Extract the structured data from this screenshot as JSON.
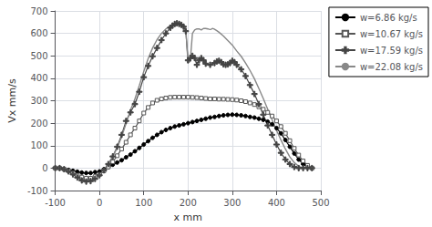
{
  "chart_data": {
    "type": "line",
    "xlabel": "x mm",
    "ylabel": "Vx mm/s",
    "xlim": [
      -100,
      500
    ],
    "ylim": [
      -100,
      700
    ],
    "xticks": [
      -100,
      0,
      100,
      200,
      300,
      400,
      500
    ],
    "yticks": [
      -100,
      0,
      100,
      200,
      300,
      400,
      500,
      600,
      700
    ],
    "grid": true,
    "legend": "right",
    "series": [
      {
        "name": "w=6.86 kg/s",
        "color": "#000000",
        "marker": "circle",
        "x": [
          -100,
          -90,
          -80,
          -70,
          -60,
          -50,
          -40,
          -30,
          -20,
          -10,
          0,
          10,
          20,
          30,
          40,
          50,
          60,
          70,
          80,
          90,
          100,
          110,
          120,
          130,
          140,
          150,
          160,
          170,
          180,
          190,
          200,
          210,
          220,
          230,
          240,
          250,
          260,
          270,
          280,
          290,
          300,
          310,
          320,
          330,
          340,
          350,
          360,
          370,
          380,
          390,
          400,
          410,
          420,
          430,
          440,
          450,
          460,
          470,
          480
        ],
        "values": [
          0,
          0,
          -5,
          -8,
          -12,
          -16,
          -20,
          -22,
          -22,
          -18,
          -15,
          -5,
          5,
          15,
          25,
          35,
          48,
          60,
          75,
          90,
          105,
          120,
          135,
          148,
          160,
          170,
          178,
          185,
          190,
          195,
          200,
          205,
          210,
          215,
          220,
          225,
          228,
          232,
          235,
          237,
          238,
          237,
          235,
          232,
          228,
          225,
          220,
          215,
          207,
          195,
          178,
          155,
          125,
          95,
          65,
          38,
          18,
          5,
          0
        ]
      },
      {
        "name": "w=10.67 kg/s",
        "color": "#555555",
        "marker": "open_square",
        "x": [
          -100,
          -90,
          -80,
          -70,
          -60,
          -50,
          -40,
          -30,
          -20,
          -10,
          0,
          10,
          20,
          30,
          40,
          50,
          60,
          70,
          80,
          90,
          100,
          110,
          120,
          130,
          140,
          150,
          160,
          170,
          180,
          190,
          200,
          210,
          220,
          230,
          240,
          250,
          260,
          270,
          280,
          290,
          300,
          310,
          320,
          330,
          340,
          350,
          360,
          370,
          380,
          390,
          400,
          410,
          420,
          430,
          440,
          450,
          460,
          470,
          480
        ],
        "values": [
          0,
          0,
          -5,
          -12,
          -22,
          -32,
          -40,
          -45,
          -45,
          -38,
          -28,
          -12,
          5,
          28,
          55,
          85,
          115,
          148,
          178,
          210,
          245,
          270,
          290,
          302,
          308,
          312,
          315,
          316,
          316,
          316,
          316,
          315,
          314,
          312,
          310,
          308,
          308,
          307,
          307,
          306,
          305,
          303,
          300,
          296,
          290,
          283,
          273,
          262,
          248,
          232,
          210,
          185,
          155,
          122,
          88,
          58,
          32,
          12,
          0
        ]
      },
      {
        "name": "w=17.59 kg/s",
        "color": "#444444",
        "marker": "plus",
        "x": [
          -100,
          -90,
          -80,
          -70,
          -60,
          -50,
          -40,
          -30,
          -20,
          -10,
          0,
          10,
          20,
          30,
          40,
          50,
          60,
          70,
          80,
          90,
          100,
          110,
          120,
          130,
          140,
          150,
          160,
          165,
          170,
          175,
          180,
          185,
          190,
          195,
          200,
          205,
          210,
          215,
          220,
          225,
          230,
          235,
          240,
          250,
          260,
          265,
          270,
          275,
          280,
          285,
          290,
          295,
          300,
          305,
          310,
          320,
          330,
          340,
          350,
          360,
          370,
          380,
          390,
          400,
          410,
          420,
          430,
          440,
          450,
          460,
          470,
          480
        ],
        "values": [
          0,
          0,
          -5,
          -15,
          -28,
          -42,
          -55,
          -60,
          -58,
          -48,
          -32,
          -10,
          18,
          52,
          95,
          148,
          210,
          248,
          285,
          340,
          405,
          455,
          498,
          535,
          570,
          600,
          625,
          635,
          642,
          645,
          642,
          638,
          630,
          610,
          480,
          490,
          500,
          490,
          460,
          480,
          490,
          480,
          465,
          460,
          468,
          475,
          478,
          472,
          462,
          460,
          462,
          468,
          478,
          472,
          460,
          440,
          410,
          370,
          330,
          285,
          238,
          190,
          148,
          105,
          68,
          38,
          18,
          5,
          0,
          0,
          0,
          0
        ]
      },
      {
        "name": "w=22.08 kg/s",
        "color": "#888888",
        "marker": "none",
        "x": [
          -100,
          -90,
          -80,
          -70,
          -60,
          -50,
          -40,
          -30,
          -20,
          -10,
          0,
          10,
          20,
          30,
          40,
          50,
          60,
          70,
          80,
          90,
          100,
          110,
          120,
          130,
          140,
          150,
          160,
          170,
          175,
          180,
          185,
          190,
          195,
          200,
          205,
          210,
          215,
          220,
          225,
          228,
          230,
          232,
          235,
          240,
          245,
          248,
          250,
          252,
          255,
          258,
          260,
          265,
          270,
          280,
          290,
          300,
          310,
          320,
          330,
          340,
          350,
          360,
          370,
          380,
          390,
          400,
          410,
          420,
          430,
          440,
          450,
          460,
          470,
          480
        ],
        "values": [
          0,
          0,
          -5,
          -12,
          -22,
          -35,
          -45,
          -50,
          -50,
          -42,
          -30,
          -10,
          18,
          52,
          90,
          140,
          198,
          258,
          308,
          368,
          430,
          488,
          535,
          572,
          600,
          620,
          635,
          642,
          645,
          645,
          643,
          638,
          620,
          470,
          475,
          600,
          615,
          620,
          620,
          617,
          615,
          618,
          622,
          622,
          620,
          618,
          617,
          618,
          622,
          620,
          618,
          612,
          605,
          588,
          568,
          548,
          522,
          498,
          468,
          435,
          398,
          355,
          310,
          262,
          215,
          168,
          125,
          85,
          50,
          25,
          8,
          0,
          0,
          0
        ]
      }
    ]
  }
}
